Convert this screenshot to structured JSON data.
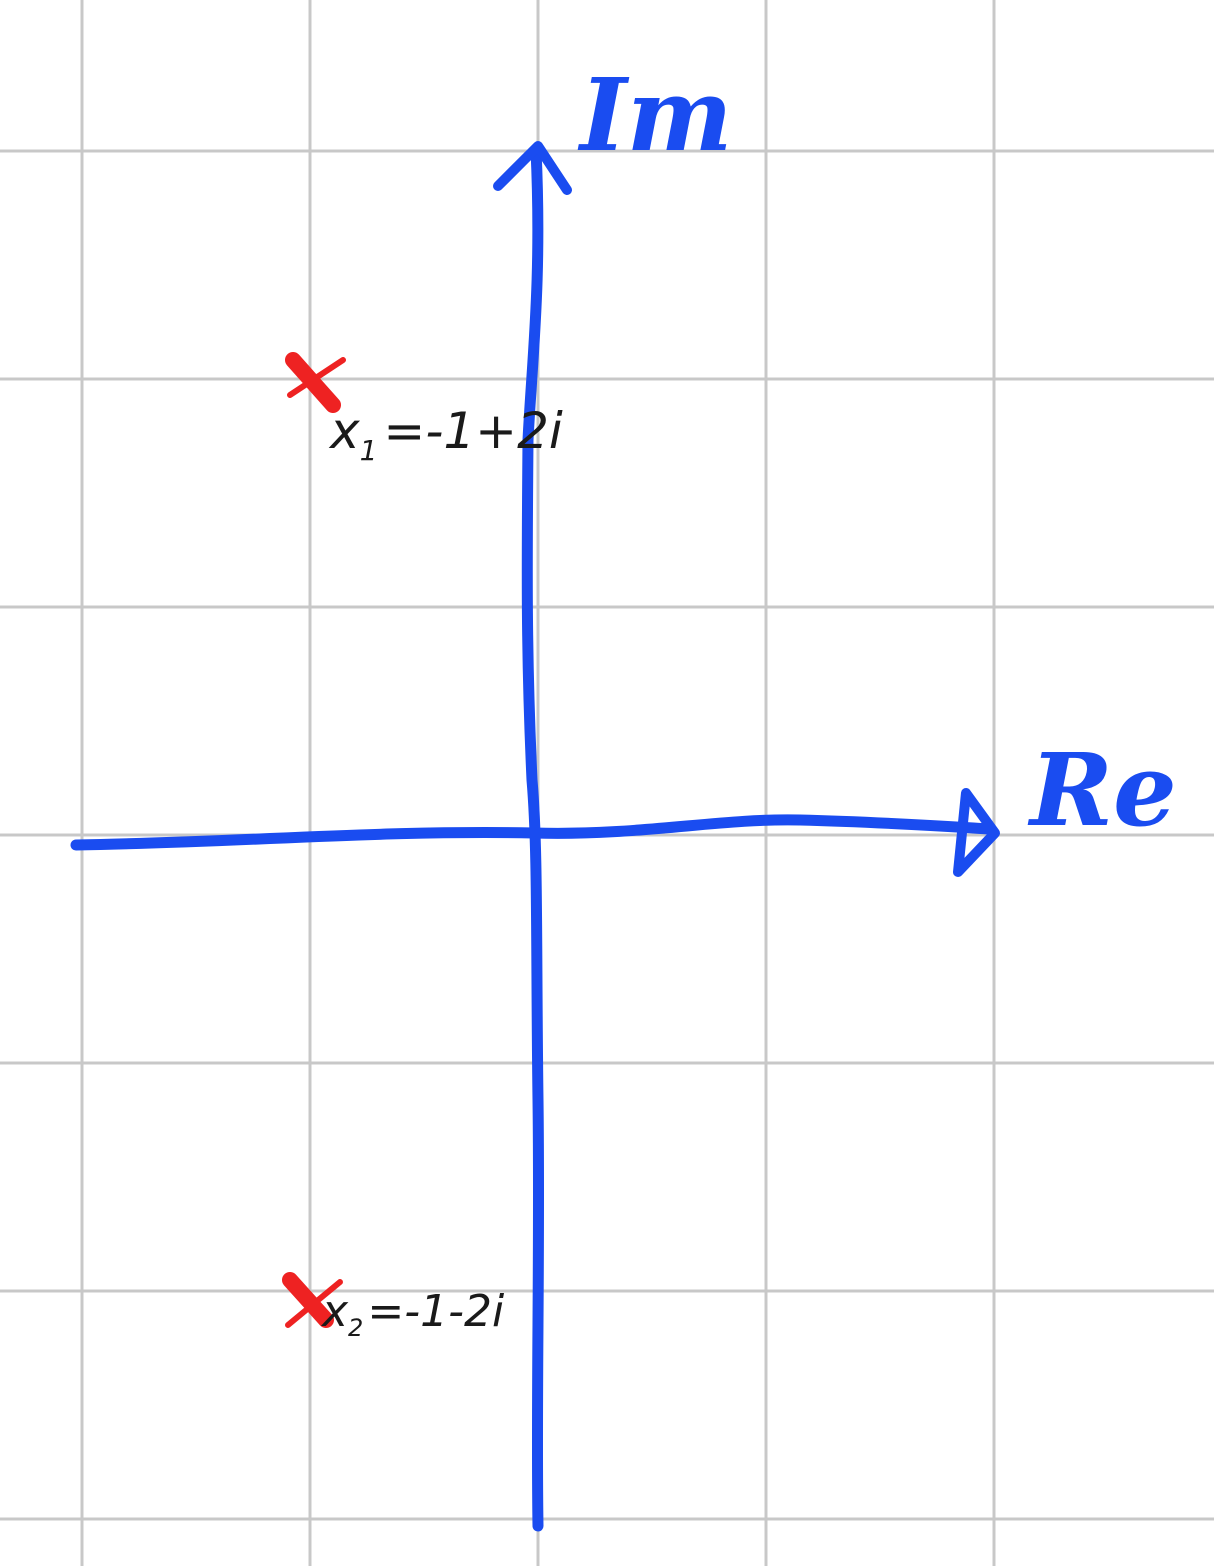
{
  "diagram": {
    "type": "complex-plane",
    "colors": {
      "background": "#ffffff",
      "grid": "#c8c8c8",
      "axes": "#1a4cf0",
      "marker": "#ee2222",
      "text": "#1a1a1a"
    },
    "axes": {
      "x_label": "Re",
      "y_label": "Im"
    },
    "points": [
      {
        "name": "x1",
        "re": -1,
        "im": 2,
        "symbol": "x",
        "subscript": "1",
        "value_text": "=-1+2i",
        "marker_icon": "red-x-icon"
      },
      {
        "name": "x2",
        "re": -1,
        "im": -2,
        "symbol": "x",
        "subscript": "2",
        "value_text": "=-1-2i",
        "marker_icon": "red-x-icon"
      }
    ]
  }
}
